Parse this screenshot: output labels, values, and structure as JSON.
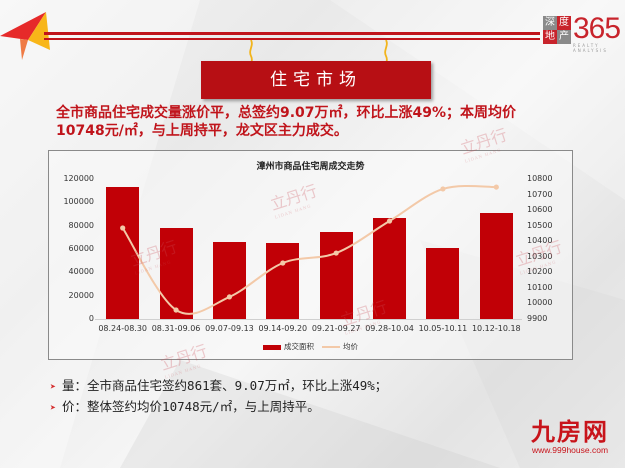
{
  "header": {
    "logo": {
      "box_chars": [
        "深",
        "度",
        "地",
        "产"
      ],
      "number": "365",
      "subtitle": "REALTY ANALYSIS"
    },
    "sign_title": "住宅市场"
  },
  "headline": {
    "line1": "全市商品住宅成交量涨价平，总签约9.07万㎡，环比上涨49%；本周均价",
    "line2": "10748元/㎡，与上周持平，龙文区主力成交。"
  },
  "watermark": {
    "text": "立丹行",
    "sub": "LIDAN HANG"
  },
  "chart_data": {
    "type": "bar",
    "title": "漳州市商品住宅周成交走势",
    "categories": [
      "08.24-08.30",
      "08.31-09.06",
      "09.07-09.13",
      "09.14-09.20",
      "09.21-09.27",
      "09.28-10.04",
      "10.05-10.11",
      "10.12-10.18"
    ],
    "series": [
      {
        "name": "成交面积",
        "type": "bar",
        "axis": "left",
        "color": "#c10006",
        "values": [
          113000,
          78000,
          66000,
          65000,
          75000,
          87000,
          61000,
          90700
        ]
      },
      {
        "name": "均价",
        "type": "line",
        "axis": "right",
        "color": "#f3c9a8",
        "values": [
          10485,
          9958,
          10042,
          10260,
          10324,
          10530,
          10736,
          10748
        ]
      }
    ],
    "y_left": {
      "ticks": [
        "120000",
        "100000",
        "80000",
        "60000",
        "40000",
        "20000",
        "0"
      ],
      "ylim": [
        0,
        120000
      ]
    },
    "y_right": {
      "ticks": [
        "10800",
        "10700",
        "10600",
        "10500",
        "10400",
        "10300",
        "10200",
        "10100",
        "10000",
        "9900"
      ],
      "ylim": [
        9900,
        10800
      ]
    },
    "xlabel": "",
    "ylabel": "",
    "legend": [
      "成交面积",
      "均价"
    ],
    "legend_position": "bottom",
    "grid": false
  },
  "bullets": [
    {
      "label": "量：",
      "text": "全市商品住宅签约861套、9.07万㎡，环比上涨49%；"
    },
    {
      "label": "价：",
      "text": "整体签约均价10748元/㎡，与上周持平。"
    }
  ],
  "footer_logo": {
    "main": "九房网",
    "url": "www.999house.com"
  },
  "colors": {
    "brand_red": "#c0141b",
    "bar": "#c10006",
    "line": "#f3c9a8"
  }
}
